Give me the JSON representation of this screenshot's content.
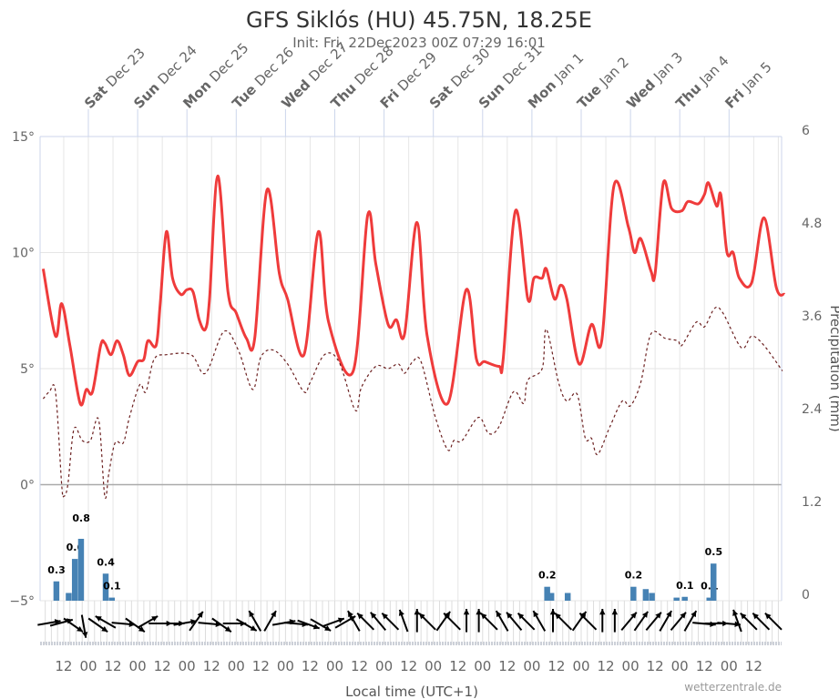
{
  "chart_data": {
    "type": "line",
    "title": "GFS Siklós (HU) 45.75N, 18.25E",
    "subtitle": "Init: Fri, 22Dec2023 00Z 07:29 16:01",
    "xlabel": "Local time (UTC+1)",
    "y2label": "Precipitation (mm)",
    "credit": "wetterzentrale.de",
    "grid": true,
    "x_range": [
      "2023-12-22T01:30",
      "2024-01-06T03:00"
    ],
    "ylim": [
      -5,
      15
    ],
    "y2lim": [
      0,
      6
    ],
    "y_tick_labels": [
      "15°",
      "10°",
      "5°",
      "0°",
      "−5°"
    ],
    "y2_tick_labels": [
      "6",
      "4.8",
      "3.6",
      "2.4",
      "1.2",
      "0"
    ],
    "day_labels": [
      {
        "dow": "Sat",
        "date": "Dec 23"
      },
      {
        "dow": "Sun",
        "date": "Dec 24"
      },
      {
        "dow": "Mon",
        "date": "Dec 25"
      },
      {
        "dow": "Tue",
        "date": "Dec 26"
      },
      {
        "dow": "Wed",
        "date": "Dec 27"
      },
      {
        "dow": "Thu",
        "date": "Dec 28"
      },
      {
        "dow": "Fri",
        "date": "Dec 29"
      },
      {
        "dow": "Sat",
        "date": "Dec 30"
      },
      {
        "dow": "Sun",
        "date": "Dec 31"
      },
      {
        "dow": "Mon",
        "date": "Jan 1"
      },
      {
        "dow": "Tue",
        "date": "Jan 2"
      },
      {
        "dow": "Wed",
        "date": "Jan 3"
      },
      {
        "dow": "Thu",
        "date": "Jan 4"
      },
      {
        "dow": "Fri",
        "date": "Jan 5"
      }
    ],
    "x_tick_labels": [
      "12",
      "00",
      "12",
      "00",
      "12",
      "00",
      "12",
      "00",
      "12",
      "00",
      "12",
      "00",
      "12",
      "00",
      "12",
      "00",
      "12",
      "00",
      "12",
      "00",
      "12",
      "00",
      "12",
      "00",
      "12",
      "00",
      "12",
      "00",
      "12"
    ],
    "colors": {
      "temperature": "#ef3b3b",
      "dewpoint": "#6b1f1f",
      "dewpoint_below_zero": "#7fb0d8",
      "precipitation": "#4682b4",
      "wind": "#000000"
    },
    "series": [
      {
        "key": "temperature",
        "style": "solid",
        "points": [
          [
            "2023-12-22T02:00",
            9.3
          ],
          [
            "2023-12-22T08:00",
            6.4
          ],
          [
            "2023-12-22T11:00",
            7.8
          ],
          [
            "2023-12-22T15:00",
            6.0
          ],
          [
            "2023-12-22T20:00",
            3.5
          ],
          [
            "2023-12-22T23:00",
            4.1
          ],
          [
            "2023-12-23T02:00",
            4.0
          ],
          [
            "2023-12-23T06:00",
            6.0
          ],
          [
            "2023-12-23T08:00",
            6.1
          ],
          [
            "2023-12-23T11:00",
            5.6
          ],
          [
            "2023-12-23T14:00",
            6.2
          ],
          [
            "2023-12-23T17:00",
            5.6
          ],
          [
            "2023-12-23T20:00",
            4.7
          ],
          [
            "2023-12-24T00:00",
            5.3
          ],
          [
            "2023-12-24T03:00",
            5.4
          ],
          [
            "2023-12-24T05:00",
            6.2
          ],
          [
            "2023-12-24T09:00",
            6.0
          ],
          [
            "2023-12-24T11:00",
            7.8
          ],
          [
            "2023-12-24T14:00",
            10.9
          ],
          [
            "2023-12-24T17:00",
            8.9
          ],
          [
            "2023-12-24T21:00",
            8.2
          ],
          [
            "2023-12-25T00:00",
            8.4
          ],
          [
            "2023-12-25T03:00",
            8.3
          ],
          [
            "2023-12-25T06:00",
            7.1
          ],
          [
            "2023-12-25T09:00",
            6.7
          ],
          [
            "2023-12-25T11:00",
            8.0
          ],
          [
            "2023-12-25T15:00",
            13.3
          ],
          [
            "2023-12-25T20:00",
            8.3
          ],
          [
            "2023-12-26T00:00",
            7.4
          ],
          [
            "2023-12-26T05:00",
            6.3
          ],
          [
            "2023-12-26T09:00",
            6.3
          ],
          [
            "2023-12-26T15:00",
            12.7
          ],
          [
            "2023-12-26T21:00",
            9.1
          ],
          [
            "2023-12-27T01:00",
            8.0
          ],
          [
            "2023-12-27T09:00",
            5.6
          ],
          [
            "2023-12-27T16:00",
            10.9
          ],
          [
            "2023-12-27T21:00",
            7.0
          ],
          [
            "2023-12-28T09:00",
            4.9
          ],
          [
            "2023-12-28T16:00",
            11.6
          ],
          [
            "2023-12-28T20:00",
            9.5
          ],
          [
            "2023-12-29T02:00",
            6.9
          ],
          [
            "2023-12-29T06:00",
            7.1
          ],
          [
            "2023-12-29T10:00",
            6.5
          ],
          [
            "2023-12-29T16:00",
            11.3
          ],
          [
            "2023-12-29T21:00",
            6.4
          ],
          [
            "2023-12-30T07:00",
            3.5
          ],
          [
            "2023-12-30T16:00",
            8.4
          ],
          [
            "2023-12-30T21:00",
            5.4
          ],
          [
            "2023-12-31T01:00",
            5.3
          ],
          [
            "2023-12-31T08:00",
            5.1
          ],
          [
            "2023-12-31T10:00",
            5.4
          ],
          [
            "2023-12-31T16:00",
            11.8
          ],
          [
            "2023-12-31T22:00",
            8.0
          ],
          [
            "2024-01-01T01:00",
            8.9
          ],
          [
            "2024-01-01T05:00",
            8.9
          ],
          [
            "2024-01-01T07:00",
            9.3
          ],
          [
            "2024-01-01T11:00",
            8.0
          ],
          [
            "2024-01-01T14:00",
            8.6
          ],
          [
            "2024-01-01T17:00",
            8.0
          ],
          [
            "2024-01-01T23:00",
            5.2
          ],
          [
            "2024-01-02T05:00",
            6.9
          ],
          [
            "2024-01-02T10:00",
            6.2
          ],
          [
            "2024-01-02T16:00",
            12.9
          ],
          [
            "2024-01-02T23:00",
            11.1
          ],
          [
            "2024-01-03T02:00",
            10.0
          ],
          [
            "2024-01-03T05:00",
            10.6
          ],
          [
            "2024-01-03T10:00",
            9.2
          ],
          [
            "2024-01-03T12:00",
            9.1
          ],
          [
            "2024-01-03T16:00",
            13.0
          ],
          [
            "2024-01-03T20:00",
            11.9
          ],
          [
            "2024-01-04T01:00",
            11.8
          ],
          [
            "2024-01-04T04:00",
            12.2
          ],
          [
            "2024-01-04T09:00",
            12.1
          ],
          [
            "2024-01-04T12:00",
            12.5
          ],
          [
            "2024-01-04T14:00",
            13.0
          ],
          [
            "2024-01-04T18:00",
            12.0
          ],
          [
            "2024-01-04T20:00",
            12.5
          ],
          [
            "2024-01-04T23:00",
            10.0
          ],
          [
            "2024-01-05T02:00",
            10.0
          ],
          [
            "2024-01-05T05:00",
            8.9
          ],
          [
            "2024-01-05T11:00",
            8.7
          ],
          [
            "2024-01-05T17:00",
            11.5
          ],
          [
            "2024-01-05T23:00",
            8.5
          ],
          [
            "2024-01-06T03:00",
            8.2
          ]
        ]
      },
      {
        "key": "dewpoint",
        "style": "dashed",
        "points": [
          [
            "2023-12-22T02:00",
            3.7
          ],
          [
            "2023-12-22T05:00",
            4.0
          ],
          [
            "2023-12-22T08:00",
            4.0
          ],
          [
            "2023-12-22T11:00",
            0.0
          ],
          [
            "2023-12-22T12:00",
            -0.5
          ],
          [
            "2023-12-22T14:00",
            0.0
          ],
          [
            "2023-12-22T17:00",
            2.4
          ],
          [
            "2023-12-22T21:00",
            1.9
          ],
          [
            "2023-12-23T01:00",
            1.9
          ],
          [
            "2023-12-23T05:00",
            2.8
          ],
          [
            "2023-12-23T08:00",
            -0.5
          ],
          [
            "2023-12-23T10:00",
            0.5
          ],
          [
            "2023-12-23T13:00",
            1.8
          ],
          [
            "2023-12-23T17:00",
            1.8
          ],
          [
            "2023-12-23T20:00",
            2.9
          ],
          [
            "2023-12-24T01:00",
            4.3
          ],
          [
            "2023-12-24T04:00",
            4.0
          ],
          [
            "2023-12-24T08:00",
            5.4
          ],
          [
            "2023-12-24T14:00",
            5.6
          ],
          [
            "2023-12-25T02:00",
            5.6
          ],
          [
            "2023-12-25T09:00",
            4.8
          ],
          [
            "2023-12-25T18:00",
            6.6
          ],
          [
            "2023-12-26T01:00",
            5.8
          ],
          [
            "2023-12-26T08:00",
            4.1
          ],
          [
            "2023-12-26T12:00",
            5.5
          ],
          [
            "2023-12-26T18:00",
            5.8
          ],
          [
            "2023-12-27T01:00",
            5.2
          ],
          [
            "2023-12-27T09:00",
            4.0
          ],
          [
            "2023-12-27T12:00",
            4.4
          ],
          [
            "2023-12-27T19:00",
            5.6
          ],
          [
            "2023-12-28T02:00",
            5.3
          ],
          [
            "2023-12-28T10:00",
            3.2
          ],
          [
            "2023-12-28T13:00",
            4.2
          ],
          [
            "2023-12-28T20:00",
            5.1
          ],
          [
            "2023-12-29T02:00",
            5.0
          ],
          [
            "2023-12-29T07:00",
            5.2
          ],
          [
            "2023-12-29T10:00",
            4.8
          ],
          [
            "2023-12-29T14:00",
            5.3
          ],
          [
            "2023-12-29T18:00",
            5.3
          ],
          [
            "2023-12-30T01:00",
            2.9
          ],
          [
            "2023-12-30T07:00",
            1.5
          ],
          [
            "2023-12-30T10:00",
            1.9
          ],
          [
            "2023-12-30T14:00",
            1.9
          ],
          [
            "2023-12-30T22:00",
            2.9
          ],
          [
            "2023-12-31T03:00",
            2.2
          ],
          [
            "2023-12-31T08:00",
            2.5
          ],
          [
            "2023-12-31T15:00",
            4.0
          ],
          [
            "2023-12-31T20:00",
            3.5
          ],
          [
            "2023-12-31T22:00",
            4.5
          ],
          [
            "2024-01-01T05:00",
            5.0
          ],
          [
            "2024-01-01T07:00",
            6.7
          ],
          [
            "2024-01-01T13:00",
            4.4
          ],
          [
            "2024-01-01T17:00",
            3.6
          ],
          [
            "2024-01-01T22:00",
            3.9
          ],
          [
            "2024-01-02T02:00",
            2.0
          ],
          [
            "2024-01-02T05:00",
            2.0
          ],
          [
            "2024-01-02T08:00",
            1.3
          ],
          [
            "2024-01-02T14:00",
            2.5
          ],
          [
            "2024-01-02T20:00",
            3.6
          ],
          [
            "2024-01-03T00:00",
            3.4
          ],
          [
            "2024-01-03T05:00",
            4.4
          ],
          [
            "2024-01-03T10:00",
            6.5
          ],
          [
            "2024-01-03T17:00",
            6.3
          ],
          [
            "2024-01-03T23:00",
            6.2
          ],
          [
            "2024-01-04T01:00",
            6.0
          ],
          [
            "2024-01-04T08:00",
            7.0
          ],
          [
            "2024-01-04T12:00",
            6.8
          ],
          [
            "2024-01-04T17:00",
            7.6
          ],
          [
            "2024-01-04T21:00",
            7.4
          ],
          [
            "2024-01-05T06:00",
            5.9
          ],
          [
            "2024-01-05T11:00",
            6.4
          ],
          [
            "2024-01-05T17:00",
            6.0
          ],
          [
            "2024-01-06T02:00",
            4.9
          ]
        ]
      }
    ],
    "precipitation": [
      {
        "time": "2023-12-22T07:00",
        "mm": 0.25,
        "label": "0.3"
      },
      {
        "time": "2023-12-22T13:00",
        "mm": 0.1
      },
      {
        "time": "2023-12-22T16:00",
        "mm": 0.54,
        "label": "0.6"
      },
      {
        "time": "2023-12-22T19:00",
        "mm": 0.8,
        "label": "0.8"
      },
      {
        "time": "2023-12-23T07:00",
        "mm": 0.35,
        "label": "0.4"
      },
      {
        "time": "2023-12-23T10:00",
        "mm": 0.04,
        "label": "0.1"
      },
      {
        "time": "2024-01-01T06:00",
        "mm": 0.18,
        "label": "0.2"
      },
      {
        "time": "2024-01-01T08:00",
        "mm": 0.1
      },
      {
        "time": "2024-01-01T16:00",
        "mm": 0.1
      },
      {
        "time": "2024-01-03T00:00",
        "mm": 0.18,
        "label": "0.2"
      },
      {
        "time": "2024-01-03T06:00",
        "mm": 0.15
      },
      {
        "time": "2024-01-03T09:00",
        "mm": 0.1
      },
      {
        "time": "2024-01-03T21:00",
        "mm": 0.04
      },
      {
        "time": "2024-01-04T01:00",
        "mm": 0.05,
        "label": "0.1"
      },
      {
        "time": "2024-01-04T13:00",
        "mm": 0.04,
        "label": "0.1"
      },
      {
        "time": "2024-01-04T15:00",
        "mm": 0.48,
        "label": "0.5"
      }
    ],
    "wind_direction_toward_deg": [
      80,
      75,
      125,
      170,
      125,
      300,
      95,
      125,
      60,
      90,
      90,
      80,
      35,
      95,
      125,
      90,
      120,
      330,
      30,
      80,
      95,
      110,
      120,
      70,
      60,
      330,
      315,
      320,
      315,
      340,
      0,
      315,
      35,
      315,
      0,
      0,
      315,
      330,
      320,
      315,
      330,
      0,
      315,
      35,
      315,
      0,
      0,
      40,
      35,
      40,
      30,
      40,
      30,
      95,
      90,
      95,
      340,
      315,
      315,
      315
    ]
  }
}
